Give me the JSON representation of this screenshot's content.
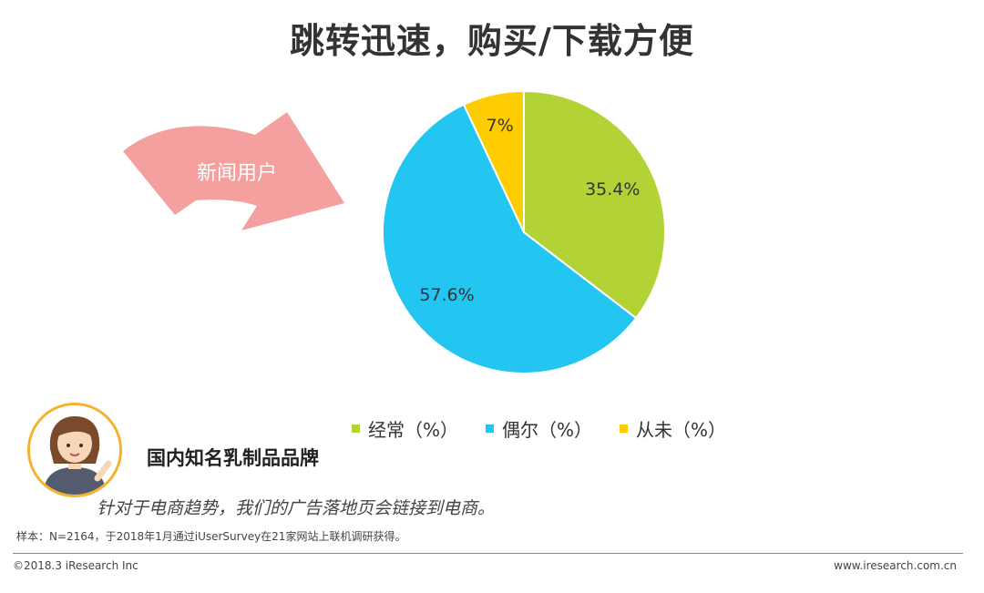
{
  "title": "跳转迅速，购买/下载方便",
  "arrow": {
    "label": "新闻用户",
    "color": "#f4a09e"
  },
  "chart_data": {
    "type": "pie",
    "slices": [
      {
        "name": "经常（%）",
        "value": 35.4,
        "label": "35.4%",
        "color": "#b2d235"
      },
      {
        "name": "偶尔（%）",
        "value": 57.6,
        "label": "57.6%",
        "color": "#22c6f0"
      },
      {
        "name": "从未（%）",
        "value": 7,
        "label": "7%",
        "color": "#ffcc00"
      }
    ],
    "legend_position": "bottom"
  },
  "brand": "国内知名乳制品品牌",
  "quote": "针对于电商趋势，我们的广告落地页会链接到电商。",
  "footer": {
    "note": "样本：N=2164，于2018年1月通过iUserSurvey在21家网站上联机调研获得。",
    "copyright": "©2018.3 iResearch Inc",
    "site": "www.iresearch.com.cn"
  }
}
